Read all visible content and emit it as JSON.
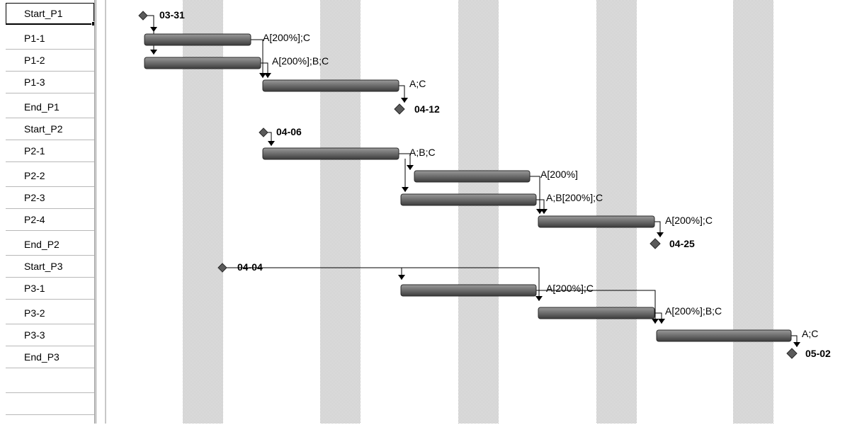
{
  "tasks": [
    {
      "name": "Start_P1"
    },
    {
      "name": "P1-1"
    },
    {
      "name": "P1-2"
    },
    {
      "name": "P1-3"
    },
    {
      "name": "End_P1"
    },
    {
      "name": "Start_P2"
    },
    {
      "name": "P2-1"
    },
    {
      "name": "P2-2"
    },
    {
      "name": "P2-3"
    },
    {
      "name": "P2-4"
    },
    {
      "name": "End_P2"
    },
    {
      "name": "Start_P3"
    },
    {
      "name": "P3-1"
    },
    {
      "name": "P3-2"
    },
    {
      "name": "P3-3"
    },
    {
      "name": "End_P3"
    }
  ],
  "selected_task": "Start_P1",
  "milestone_labels": {
    "start_p1": "03-31",
    "end_p1": "04-12",
    "start_p2": "04-06",
    "end_p2": "04-25",
    "start_p3": "04-04",
    "end_p3": "05-02"
  },
  "resource_labels": {
    "p1_1": "A[200%];C",
    "p1_2": "A[200%];B;C",
    "p1_3": "A;C",
    "p2_1": "A;B;C",
    "p2_2": "A[200%]",
    "p2_3": "A;B[200%];C",
    "p2_4": "A[200%];C",
    "p3_1": "A[200%];C",
    "p3_2": "A[200%];B;C",
    "p3_3": "A;C"
  },
  "colors": {
    "bar": "#6e6e6e",
    "milestone": "#5a5a5a",
    "nonworking_shade": "#d8d8d8",
    "row_border": "#b8b8b8"
  }
}
